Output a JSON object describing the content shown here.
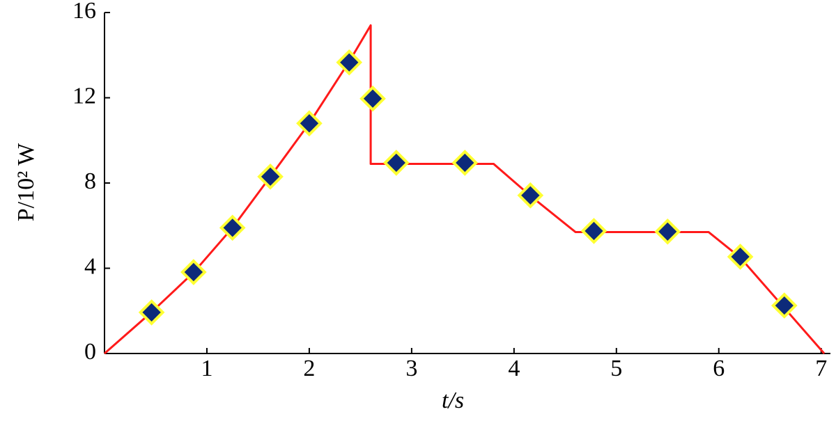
{
  "chart_data": {
    "type": "line",
    "xlabel": "t/s",
    "ylabel": "P/10² W",
    "xlim": [
      0,
      7.07
    ],
    "xticks": [
      1,
      2,
      3,
      4,
      5,
      6,
      7
    ],
    "ylim": [
      0,
      16
    ],
    "yticks": [
      0,
      4,
      8,
      12,
      16
    ],
    "grid": false,
    "series": [
      {
        "type": "line",
        "color": "#ff1a1a",
        "x": [
          0,
          0.45,
          0.87,
          1.25,
          1.62,
          2.0,
          2.39,
          2.6,
          2.6,
          3.8,
          4.16,
          4.6,
          5.9,
          6.21,
          7.03
        ],
        "values": [
          0,
          1.9,
          3.8,
          5.9,
          8.3,
          10.8,
          13.7,
          15.4,
          8.9,
          8.9,
          7.4,
          5.7,
          5.7,
          4.5,
          0
        ]
      },
      {
        "type": "scatter",
        "color": "#0d2a7a",
        "edge_color": "#ffff33",
        "x": [
          0.46,
          0.87,
          1.25,
          1.62,
          2.0,
          2.39,
          2.62,
          2.85,
          3.52,
          4.16,
          4.78,
          5.5,
          6.21,
          6.64
        ],
        "values": [
          1.93,
          3.82,
          5.9,
          8.3,
          10.8,
          13.66,
          11.96,
          8.95,
          8.95,
          7.42,
          5.75,
          5.72,
          4.54,
          2.25
        ]
      }
    ]
  }
}
